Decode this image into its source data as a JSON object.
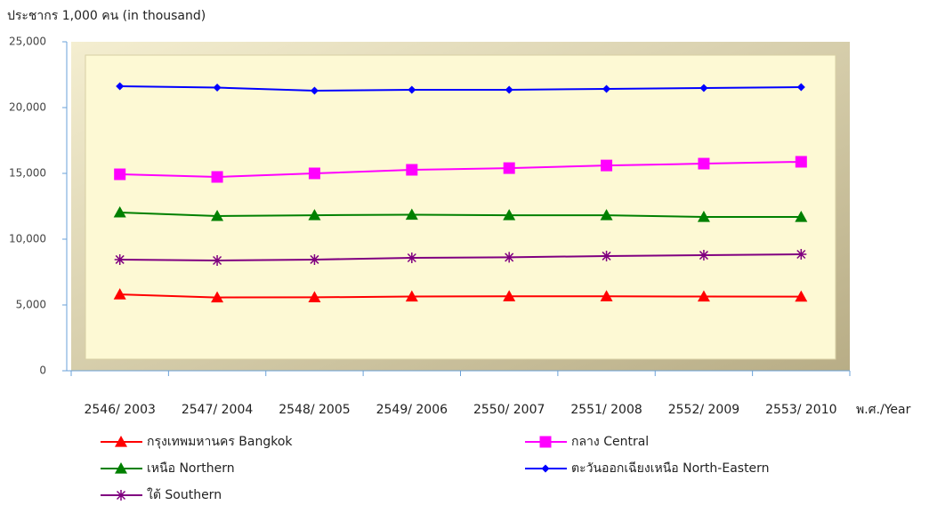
{
  "chart_data": {
    "type": "line",
    "y_axis_label": "ประชากร 1,000 คน (in thousand)",
    "x_axis_label": "พ.ศ./Year",
    "categories": [
      "2546/ 2003",
      "2547/ 2004",
      "2548/ 2005",
      "2549/ 2006",
      "2550/ 2007",
      "2551/ 2008",
      "2552/ 2009",
      "2553/ 2010"
    ],
    "series": [
      {
        "name": "กรุงเทพมหานคร Bangkok",
        "color": "#ff0000",
        "marker": "triangle",
        "values": [
          5800,
          5570,
          5580,
          5640,
          5660,
          5660,
          5640,
          5630
        ]
      },
      {
        "name": "กลาง  Central",
        "color": "#ff00ff",
        "marker": "square",
        "values": [
          14930,
          14730,
          15000,
          15270,
          15400,
          15600,
          15740,
          15880
        ]
      },
      {
        "name": "เหนือ Northern",
        "color": "#008000",
        "marker": "triangle",
        "values": [
          12030,
          11760,
          11820,
          11860,
          11820,
          11820,
          11690,
          11690
        ]
      },
      {
        "name": "ตะวันออกเฉียงเหนือ North-Eastern",
        "color": "#0000ff",
        "marker": "diamond",
        "values": [
          21620,
          21520,
          21280,
          21350,
          21350,
          21420,
          21490,
          21550
        ]
      },
      {
        "name": "ใต้ Southern",
        "color": "#800080",
        "marker": "asterisk",
        "values": [
          8450,
          8380,
          8450,
          8580,
          8620,
          8720,
          8780,
          8850
        ]
      }
    ],
    "ylim": [
      0,
      25000
    ],
    "yticks": [
      0,
      {
        "value": 5000,
        "label": "5,000"
      },
      {
        "value": 10000,
        "label": "10,000"
      },
      {
        "value": 15000,
        "label": "15,000"
      },
      {
        "value": 20000,
        "label": "20,000"
      },
      {
        "value": 25000,
        "label": "25,000"
      }
    ]
  }
}
